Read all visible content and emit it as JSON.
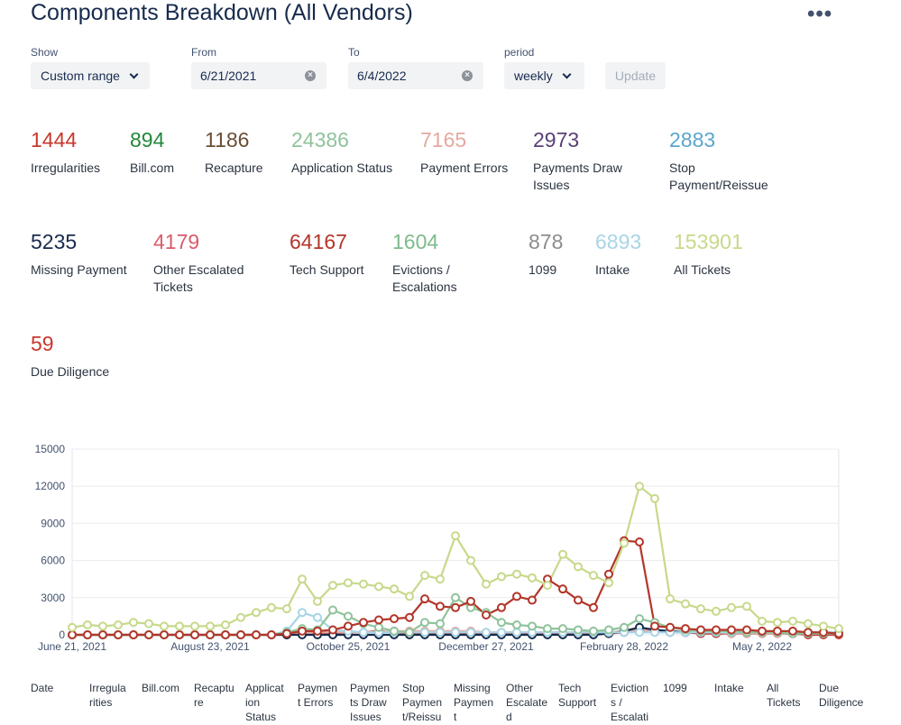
{
  "page": {
    "title": "Components Breakdown (All Vendors)",
    "more": "•••"
  },
  "filters": {
    "show": {
      "label": "Show",
      "value": "Custom range"
    },
    "from": {
      "label": "From",
      "value": "6/21/2021"
    },
    "to": {
      "label": "To",
      "value": "6/4/2022"
    },
    "period": {
      "label": "period",
      "value": "weekly"
    },
    "update": "Update"
  },
  "stats": [
    {
      "value": "1444",
      "label": "Irregularities",
      "color": "#c9372c"
    },
    {
      "value": "894",
      "label": "Bill.com",
      "color": "#22883a"
    },
    {
      "value": "1186",
      "label": "Recapture",
      "color": "#6b4e34"
    },
    {
      "value": "24386",
      "label": "Application Status",
      "color": "#8fc39b"
    },
    {
      "value": "7165",
      "label": "Payment Errors",
      "color": "#e4a9a0"
    },
    {
      "value": "2973",
      "label": "Payments Draw\nIssues",
      "color": "#5b3f76"
    },
    {
      "value": "2883",
      "label": "Stop\nPayment/Reissue",
      "color": "#5aa6cc"
    },
    {
      "value": "5235",
      "label": "Missing Payment",
      "color": "#172b4d"
    },
    {
      "value": "4179",
      "label": "Other Escalated\nTickets",
      "color": "#d95b6c"
    },
    {
      "value": "64167",
      "label": "Tech Support",
      "color": "#b3362a"
    },
    {
      "value": "1604",
      "label": "Evictions /\nEscalations",
      "color": "#7dbb8d"
    },
    {
      "value": "878",
      "label": "1099",
      "color": "#8d8d8d"
    },
    {
      "value": "6893",
      "label": "Intake",
      "color": "#a8d5e6"
    },
    {
      "value": "153901",
      "label": "All Tickets",
      "color": "#c7d98b"
    },
    {
      "value": "59",
      "label": "Due Diligence",
      "color": "#c9372c"
    }
  ],
  "table_headers": [
    "Date",
    "Irregula\nrities",
    "Bill.com",
    "Recaptu\nre",
    "Applicat\nion\nStatus",
    "Paymen\nt Errors",
    "Paymen\nts Draw\nIssues",
    "Stop\nPaymen\nt/Reissu",
    "Missing\nPaymen\nt",
    "Other\nEscalate\nd",
    "Tech\nSupport",
    "Eviction\ns /\nEscalati",
    "1099",
    "Intake",
    "All\nTickets",
    "Due\nDiligence"
  ],
  "chart_data": {
    "type": "line",
    "title": "",
    "xlabel": "",
    "ylabel": "",
    "ylim": [
      0,
      15000
    ],
    "yticks": [
      0,
      3000,
      6000,
      9000,
      12000,
      15000
    ],
    "xticks": [
      "June 21, 2021",
      "August 23, 2021",
      "October 25, 2021",
      "December 27, 2021",
      "February 28, 2022",
      "May 2, 2022"
    ],
    "x_count": 51,
    "series": [
      {
        "name": "All Tickets",
        "color": "#c7d98b",
        "values": [
          600,
          800,
          700,
          800,
          1000,
          900,
          700,
          700,
          700,
          700,
          800,
          1400,
          1800,
          2200,
          2100,
          4500,
          2700,
          4000,
          4200,
          4100,
          3900,
          3700,
          3100,
          4800,
          4500,
          8000,
          6000,
          4100,
          4700,
          4900,
          4600,
          4000,
          6500,
          5500,
          4800,
          4200,
          7400,
          12000,
          11000,
          2900,
          2500,
          2100,
          1900,
          2200,
          2300,
          1100,
          1000,
          1100,
          900,
          700,
          500
        ]
      },
      {
        "name": "Tech Support",
        "color": "#b3362a",
        "values": [
          0,
          0,
          0,
          0,
          0,
          0,
          0,
          0,
          0,
          0,
          0,
          0,
          0,
          0,
          100,
          300,
          300,
          400,
          700,
          1000,
          1200,
          1300,
          1400,
          2900,
          2300,
          2200,
          2700,
          1600,
          2200,
          3100,
          2800,
          4500,
          3700,
          2800,
          2200,
          4900,
          7600,
          7500,
          700,
          600,
          500,
          400,
          400,
          400,
          400,
          300,
          300,
          300,
          200,
          200,
          100
        ]
      },
      {
        "name": "Application Status",
        "color": "#8fc39b",
        "values": [
          0,
          0,
          0,
          0,
          0,
          0,
          0,
          0,
          0,
          0,
          0,
          0,
          0,
          0,
          200,
          500,
          400,
          2000,
          1500,
          900,
          600,
          300,
          200,
          1000,
          900,
          3000,
          2200,
          1800,
          1000,
          800,
          700,
          500,
          500,
          400,
          300,
          400,
          600,
          1300,
          1000,
          600,
          400,
          300,
          300,
          300,
          200,
          200,
          200,
          100,
          100,
          100,
          100
        ]
      },
      {
        "name": "Intake",
        "color": "#a8d5e6",
        "values": [
          0,
          0,
          0,
          0,
          0,
          0,
          0,
          0,
          0,
          0,
          0,
          0,
          0,
          0,
          300,
          1800,
          1400,
          400,
          300,
          200,
          200,
          200,
          200,
          200,
          200,
          200,
          200,
          200,
          200,
          200,
          200,
          200,
          200,
          200,
          200,
          200,
          200,
          200,
          200,
          200,
          200,
          200,
          200,
          200,
          200,
          200,
          200,
          200,
          200,
          200,
          200
        ]
      },
      {
        "name": "Missing Payment",
        "color": "#172b4d",
        "values": [
          0,
          0,
          0,
          0,
          0,
          0,
          0,
          0,
          0,
          0,
          0,
          0,
          0,
          0,
          0,
          0,
          0,
          0,
          0,
          0,
          0,
          0,
          0,
          0,
          0,
          0,
          0,
          0,
          0,
          0,
          0,
          0,
          0,
          0,
          0,
          100,
          300,
          600,
          400,
          300,
          200,
          200,
          200,
          200,
          200,
          200,
          200,
          100,
          100,
          100,
          100
        ]
      },
      {
        "name": "Payment Errors",
        "color": "#e4a9a0",
        "values": [
          0,
          0,
          0,
          0,
          0,
          0,
          0,
          0,
          0,
          0,
          0,
          0,
          0,
          0,
          100,
          100,
          200,
          200,
          200,
          200,
          200,
          300,
          300,
          300,
          300,
          300,
          300,
          200,
          200,
          200,
          200,
          200,
          200,
          200,
          200,
          200,
          300,
          400,
          300,
          200,
          200,
          200,
          200,
          100,
          100,
          100,
          100,
          100,
          100,
          100,
          100
        ]
      },
      {
        "name": "Irregularities",
        "color": "#c9372c",
        "values": [
          0,
          0,
          0,
          0,
          0,
          0,
          0,
          0,
          0,
          0,
          0,
          0,
          0,
          0,
          0,
          100,
          100,
          100,
          200,
          200,
          300,
          200,
          100,
          100,
          100,
          100,
          100,
          100,
          100,
          100,
          100,
          100,
          100,
          100,
          100,
          100,
          200,
          300,
          300,
          200,
          200,
          100,
          100,
          100,
          100,
          100,
          100,
          100,
          0,
          0,
          0
        ]
      }
    ]
  }
}
